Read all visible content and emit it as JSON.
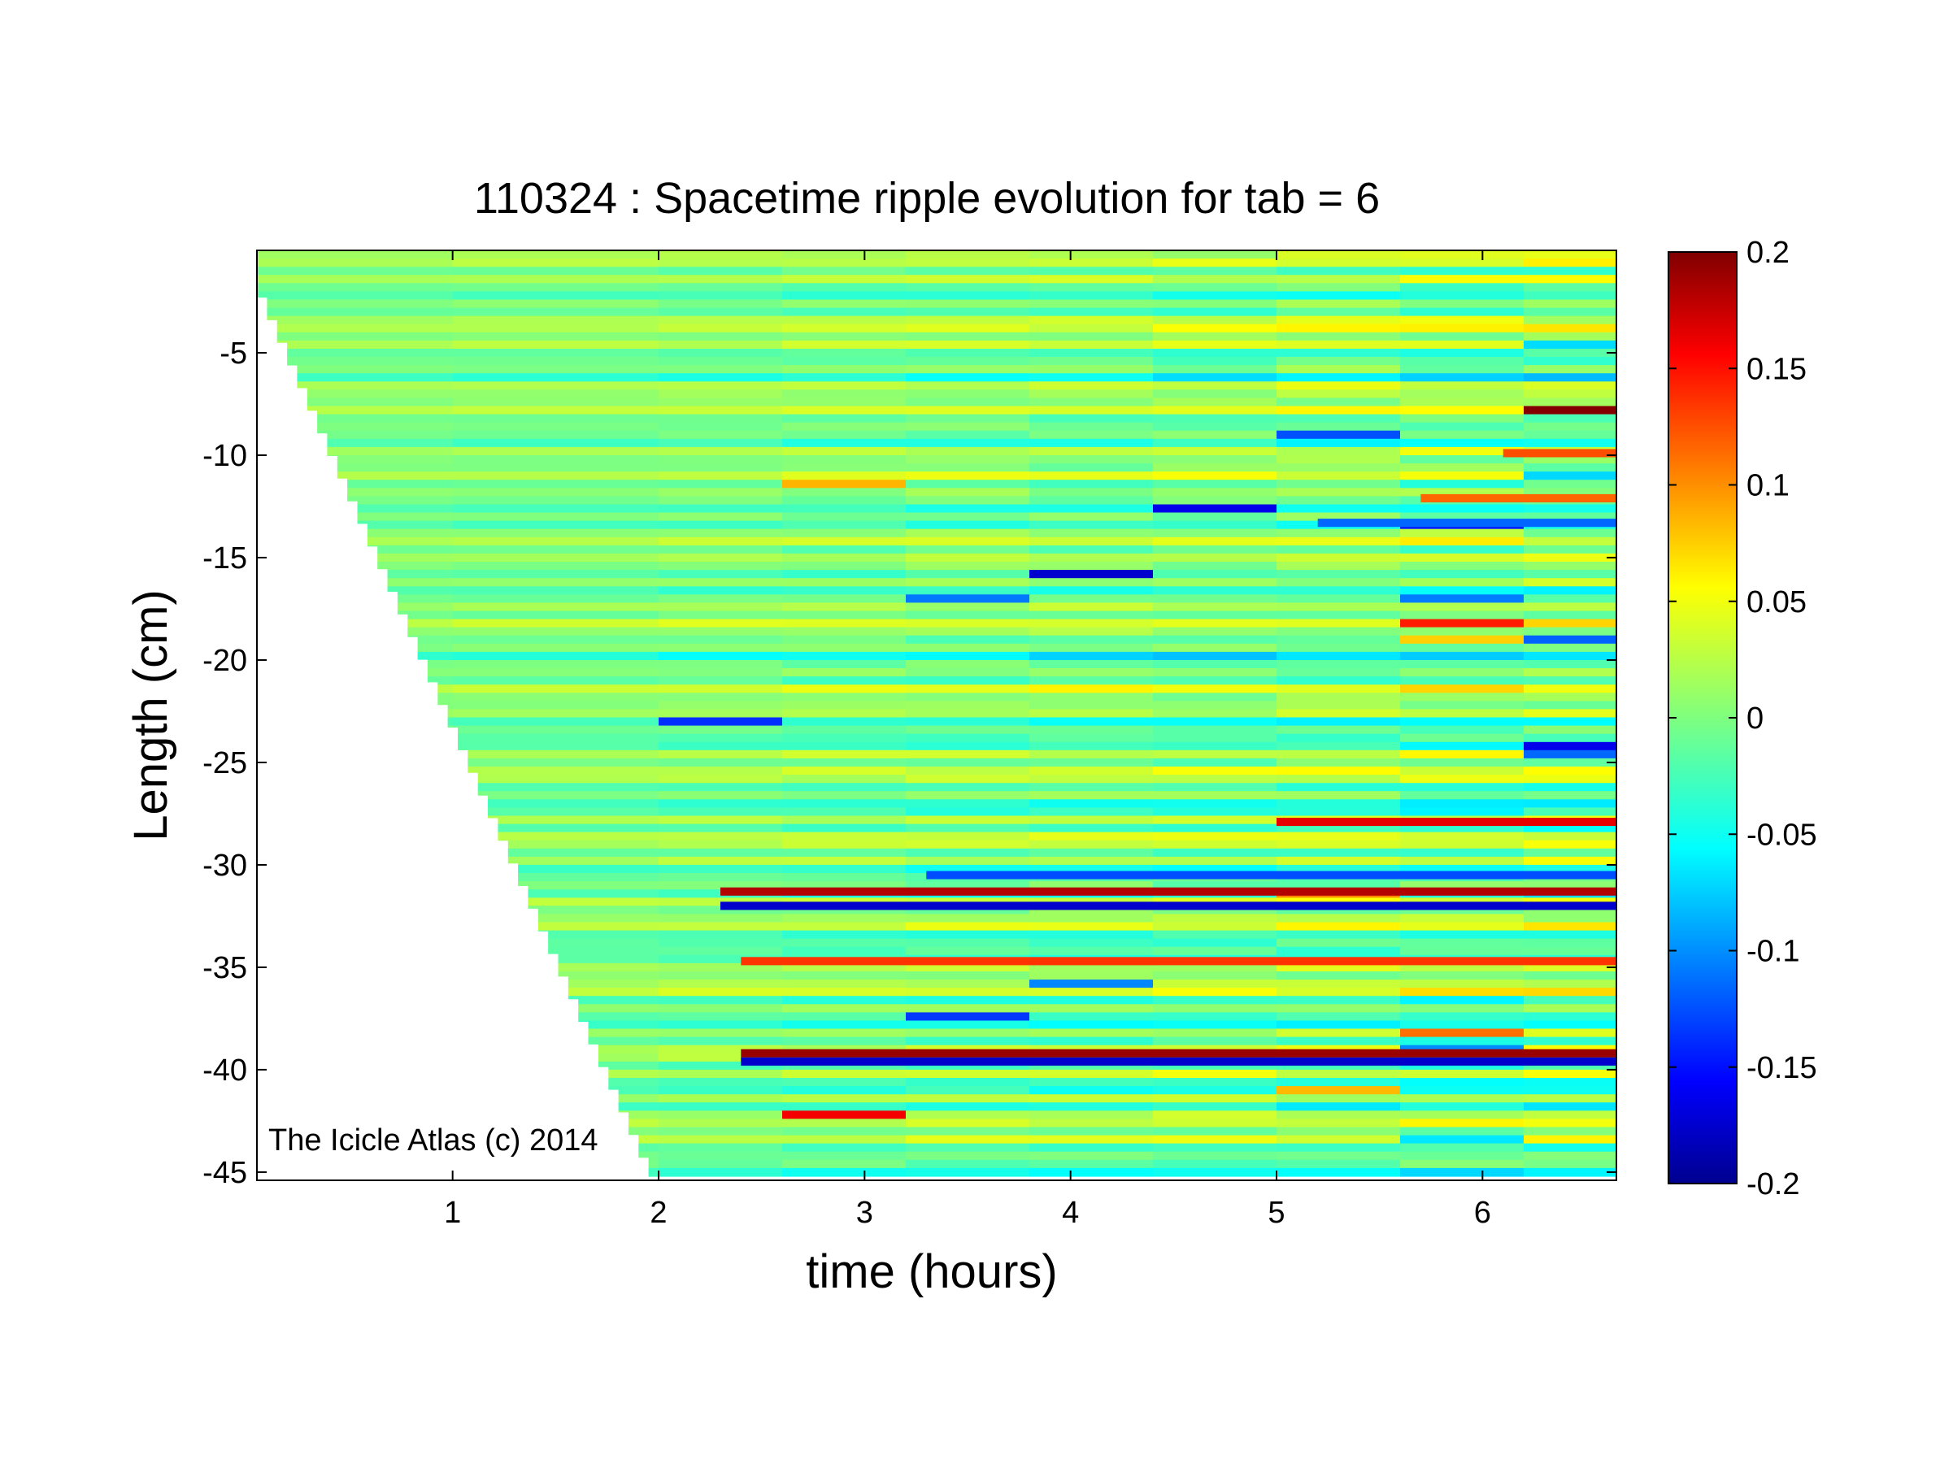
{
  "chart_data": {
    "type": "heatmap",
    "title": "110324 : Spacetime ripple evolution for tab = 6",
    "xlabel": "time (hours)",
    "ylabel": "Length (cm)",
    "xlim": [
      0.05,
      6.65
    ],
    "ylim": [
      -45.4,
      0
    ],
    "xticks": [
      1,
      2,
      3,
      4,
      5,
      6
    ],
    "xtick_labels": [
      "1",
      "2",
      "3",
      "4",
      "5",
      "6"
    ],
    "yticks": [
      -5,
      -10,
      -15,
      -20,
      -25,
      -30,
      -35,
      -40,
      -45
    ],
    "ytick_labels": [
      "-5",
      "-10",
      "-15",
      "-20",
      "-25",
      "-30",
      "-35",
      "-40",
      "-45"
    ],
    "colormap": "jet",
    "clim": [
      -0.2,
      0.2
    ],
    "colorbar_ticks": [
      0.2,
      0.15,
      0.1,
      0.05,
      0,
      -0.05,
      -0.1,
      -0.15,
      -0.2
    ],
    "colorbar_tick_labels": [
      "0.2",
      "0.15",
      "0.1",
      "0.05",
      "0",
      "-0.05",
      "-0.1",
      "-0.15",
      "-0.2"
    ],
    "icicle_front": [
      [
        0.05,
        -1.2
      ],
      [
        2.0,
        -45.4
      ]
    ],
    "stable_ripples": [
      {
        "y": -31.3,
        "amplitude": 0.18,
        "t_start": 2.3
      },
      {
        "y": -32.0,
        "amplitude": -0.17,
        "t_start": 2.3
      },
      {
        "y": -39.2,
        "amplitude": 0.19,
        "t_start": 2.4
      },
      {
        "y": -39.6,
        "amplitude": -0.17,
        "t_start": 2.4
      },
      {
        "y": -27.9,
        "amplitude": 0.16,
        "t_start": 5.0
      },
      {
        "y": -34.7,
        "amplitude": 0.13,
        "t_start": 2.4
      },
      {
        "y": -30.5,
        "amplitude": -0.12,
        "t_start": 3.3
      },
      {
        "y": -9.9,
        "amplitude": 0.12,
        "t_start": 6.1
      },
      {
        "y": -13.3,
        "amplitude": -0.11,
        "t_start": 5.2
      },
      {
        "y": -12.1,
        "amplitude": 0.11,
        "t_start": 5.7
      }
    ],
    "annotation": "The Icicle Atlas (c) 2014"
  }
}
